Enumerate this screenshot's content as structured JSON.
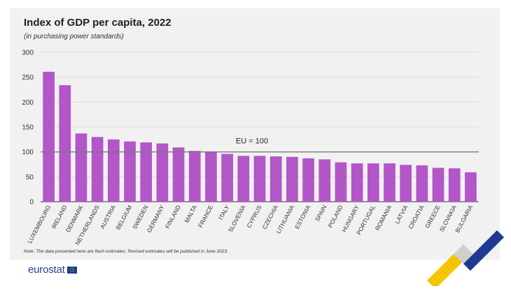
{
  "chart_data": {
    "type": "bar",
    "title": "Index of GDP per capita, 2022",
    "subtitle": "(in purchasing power standards)",
    "categories": [
      "LUXEMBOURG",
      "IRELAND",
      "DENMARK",
      "NETHERLANDS",
      "AUSTRIA",
      "BELGIUM",
      "SWEDEN",
      "GERMANY",
      "FINLAND",
      "MALTA",
      "FRANCE",
      "ITALY",
      "SLOVENIA",
      "CYPRUS",
      "CZECHIA",
      "LITHUANIA",
      "ESTONIA",
      "SPAIN",
      "POLAND",
      "HUNGARY",
      "PORTUGAL",
      "ROMANIA",
      "LATVIA",
      "CROATIA",
      "GREECE",
      "SLOVAKIA",
      "BULGARIA"
    ],
    "values": [
      261,
      234,
      137,
      130,
      125,
      121,
      119,
      117,
      109,
      102,
      101,
      96,
      92,
      92,
      91,
      90,
      87,
      85,
      79,
      77,
      77,
      77,
      74,
      73,
      68,
      67,
      59
    ],
    "yticks": [
      0,
      50,
      100,
      150,
      200,
      250,
      300
    ],
    "ylim": [
      0,
      300
    ],
    "reference_line": {
      "value": 100,
      "label": "EU = 100"
    },
    "grid": true,
    "bar_color": "#b256c8",
    "reference_color": "#7a7a7a"
  },
  "note": "Note: The data presented here are flash estimates. Revised estimates will be published in June 2023.",
  "logo": {
    "text": "eurostat"
  },
  "colors": {
    "panel": "#f1f1f1",
    "logo_blue": "#2d3a8c",
    "deco_yellow": "#f5c400",
    "deco_blue": "#1f3a93"
  }
}
